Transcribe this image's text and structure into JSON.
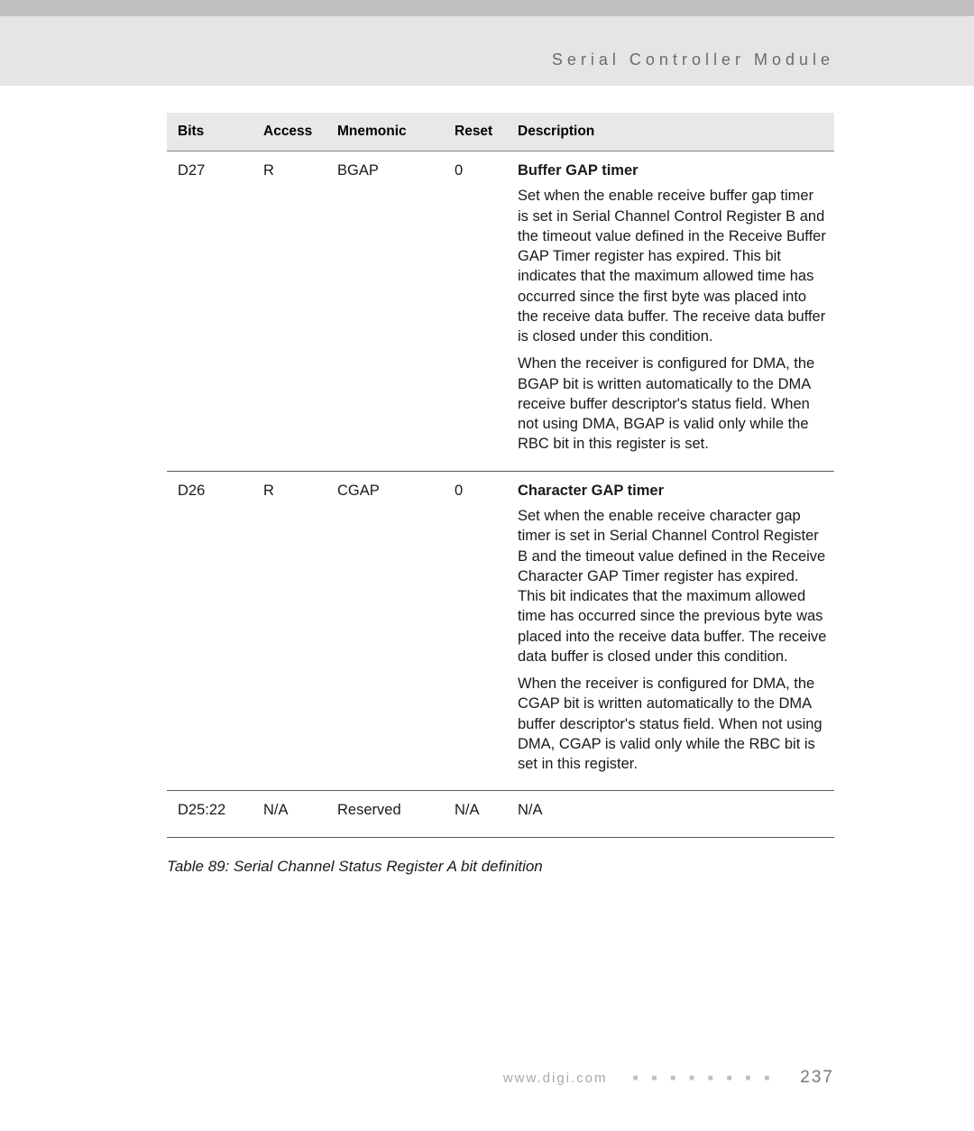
{
  "header": {
    "title": "Serial Controller Module"
  },
  "table": {
    "columns": {
      "bits": "Bits",
      "access": "Access",
      "mnemonic": "Mnemonic",
      "reset": "Reset",
      "description": "Description"
    },
    "rows": [
      {
        "bits": "D27",
        "access": "R",
        "mnemonic": "BGAP",
        "reset": "0",
        "desc_title": "Buffer GAP timer",
        "desc_p1": "Set when the enable receive buffer gap timer is set in Serial Channel Control Register B and the timeout value defined in the Receive Buffer GAP Timer register has expired. This bit indicates that the maximum allowed time has occurred since the first byte was placed into the receive data buffer. The receive data buffer is closed under this condition.",
        "desc_p2": "When the receiver is configured for DMA, the BGAP bit is written automatically to the DMA receive buffer descriptor's status field. When not using DMA, BGAP is valid only while the RBC bit in this register is set."
      },
      {
        "bits": "D26",
        "access": "R",
        "mnemonic": "CGAP",
        "reset": "0",
        "desc_title": "Character GAP timer",
        "desc_p1": "Set when the enable receive character gap timer is set in Serial Channel Control Register B and the timeout value defined in the Receive Character GAP Timer register has expired. This bit indicates that the maximum allowed time has occurred since the previous byte was placed into the receive data buffer. The receive data buffer is closed under this condition.",
        "desc_p2": "When the receiver is configured for DMA, the CGAP bit is written automatically to the DMA buffer descriptor's status field. When not using DMA, CGAP is valid only while the RBC bit is set in this register."
      },
      {
        "bits": "D25:22",
        "access": "N/A",
        "mnemonic": "Reserved",
        "reset": "N/A",
        "desc_title": "",
        "desc_p1": "N/A",
        "desc_p2": ""
      }
    ]
  },
  "caption": "Table 89: Serial Channel Status Register A bit definition",
  "footer": {
    "url": "www.digi.com",
    "dots": "■ ■ ■ ■ ■ ■ ■ ■",
    "page": "237"
  }
}
